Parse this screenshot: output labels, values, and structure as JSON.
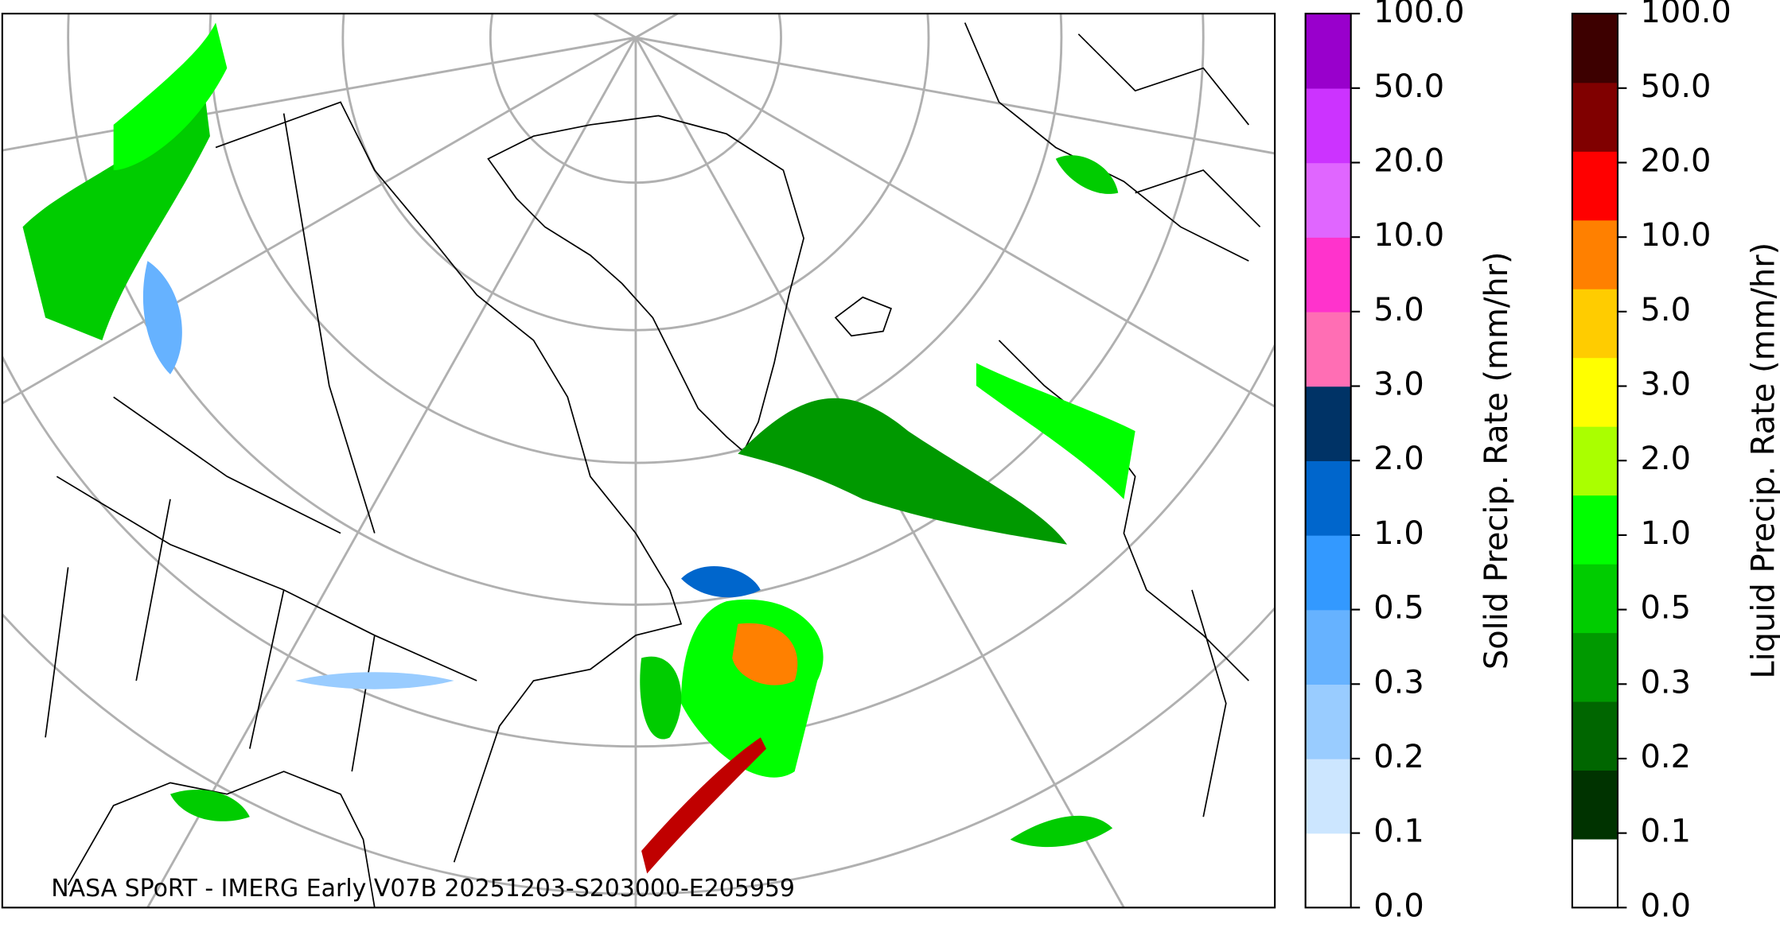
{
  "map": {
    "caption": "NASA SPoRT - IMERG Early V07B 20251203-S203000-E205959"
  },
  "colorbars": [
    {
      "label": "Solid Precip. Rate (mm/hr)",
      "ticks": [
        "0.0",
        "0.1",
        "0.2",
        "0.3",
        "0.5",
        "1.0",
        "2.0",
        "3.0",
        "5.0",
        "10.0",
        "20.0",
        "50.0",
        "100.0"
      ],
      "colors": [
        "#ffffff",
        "#cce6ff",
        "#99ccff",
        "#66b2ff",
        "#3399ff",
        "#0066cc",
        "#003366",
        "#ff6eb4",
        "#ff33cc",
        "#e066ff",
        "#cc33ff",
        "#9900cc"
      ]
    },
    {
      "label": "Liquid Precip. Rate (mm/hr)",
      "ticks": [
        "0.0",
        "0.1",
        "0.2",
        "0.3",
        "0.5",
        "1.0",
        "2.0",
        "3.0",
        "5.0",
        "10.0",
        "20.0",
        "50.0",
        "100.0"
      ],
      "colors": [
        "#ffffff",
        "#003300",
        "#006600",
        "#009900",
        "#00cc00",
        "#00ff00",
        "#aaff00",
        "#ffff00",
        "#ffcc00",
        "#ff8000",
        "#ff0000",
        "#800000",
        "#3d0000"
      ]
    }
  ]
}
